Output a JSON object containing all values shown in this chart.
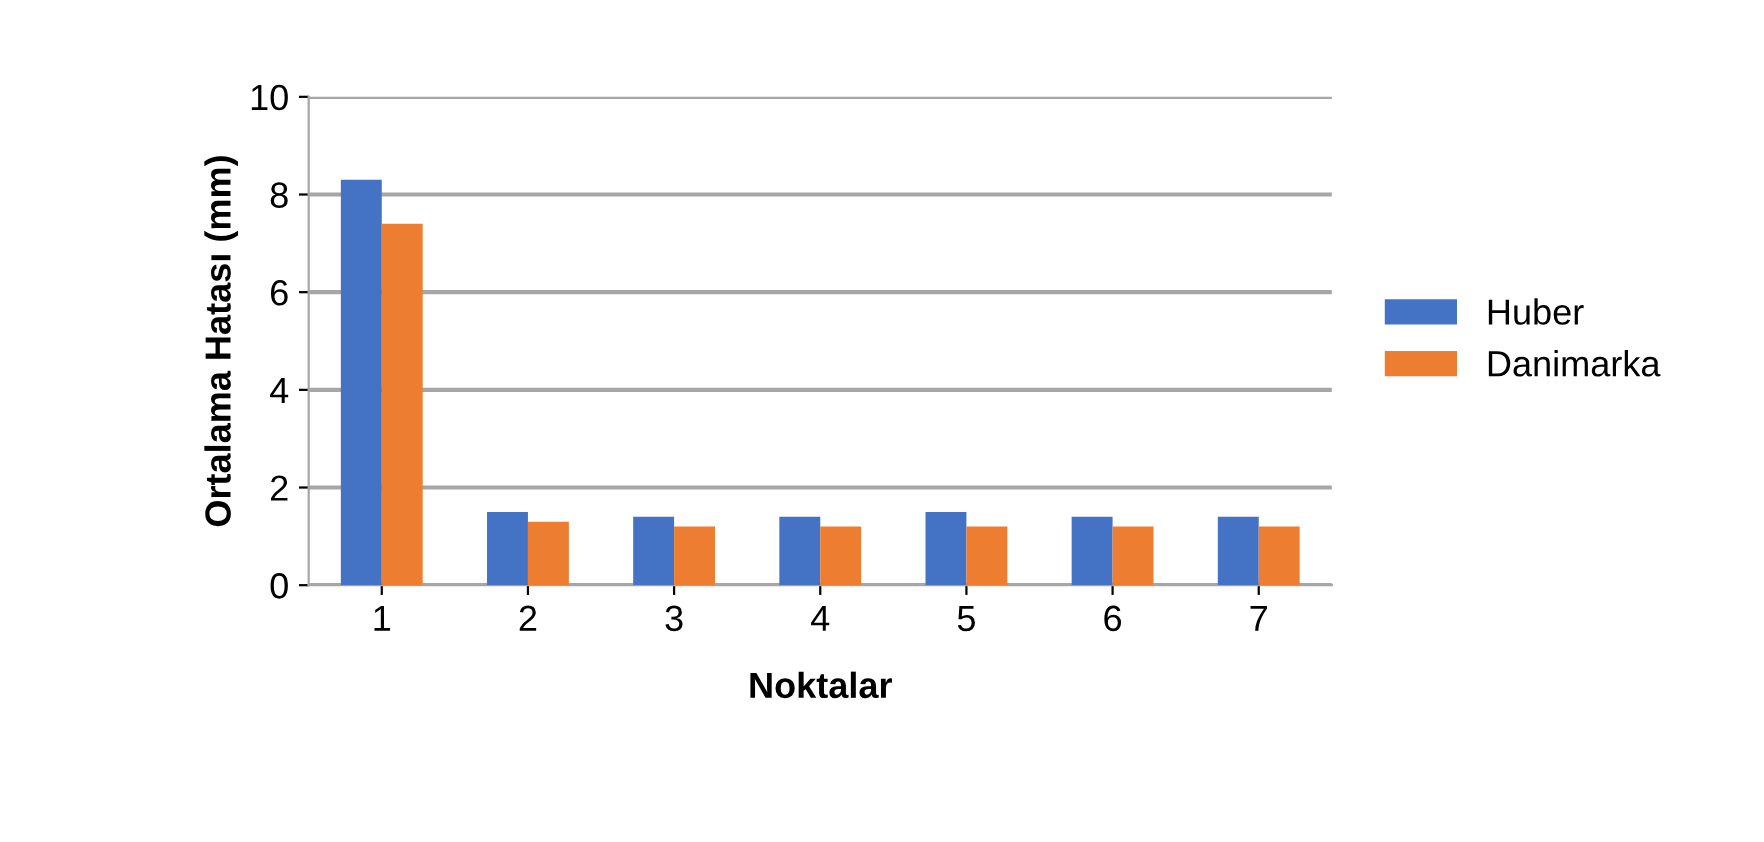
{
  "chart_data": {
    "type": "bar",
    "xlabel": "Noktalar",
    "ylabel": "Ortalama Hatası (mm)",
    "categories": [
      "1",
      "2",
      "3",
      "4",
      "5",
      "6",
      "7"
    ],
    "series": [
      {
        "name": "Huber",
        "color": "#4472c4",
        "values": [
          8.3,
          1.5,
          1.4,
          1.4,
          1.5,
          1.4,
          1.4
        ]
      },
      {
        "name": "Danimarka",
        "color": "#ed7d31",
        "values": [
          7.4,
          1.3,
          1.2,
          1.2,
          1.2,
          1.2,
          1.2
        ]
      }
    ],
    "ylim": [
      0,
      10
    ],
    "yticks": [
      0,
      2,
      4,
      6,
      8,
      10
    ],
    "grid": "y",
    "legend": "right"
  }
}
